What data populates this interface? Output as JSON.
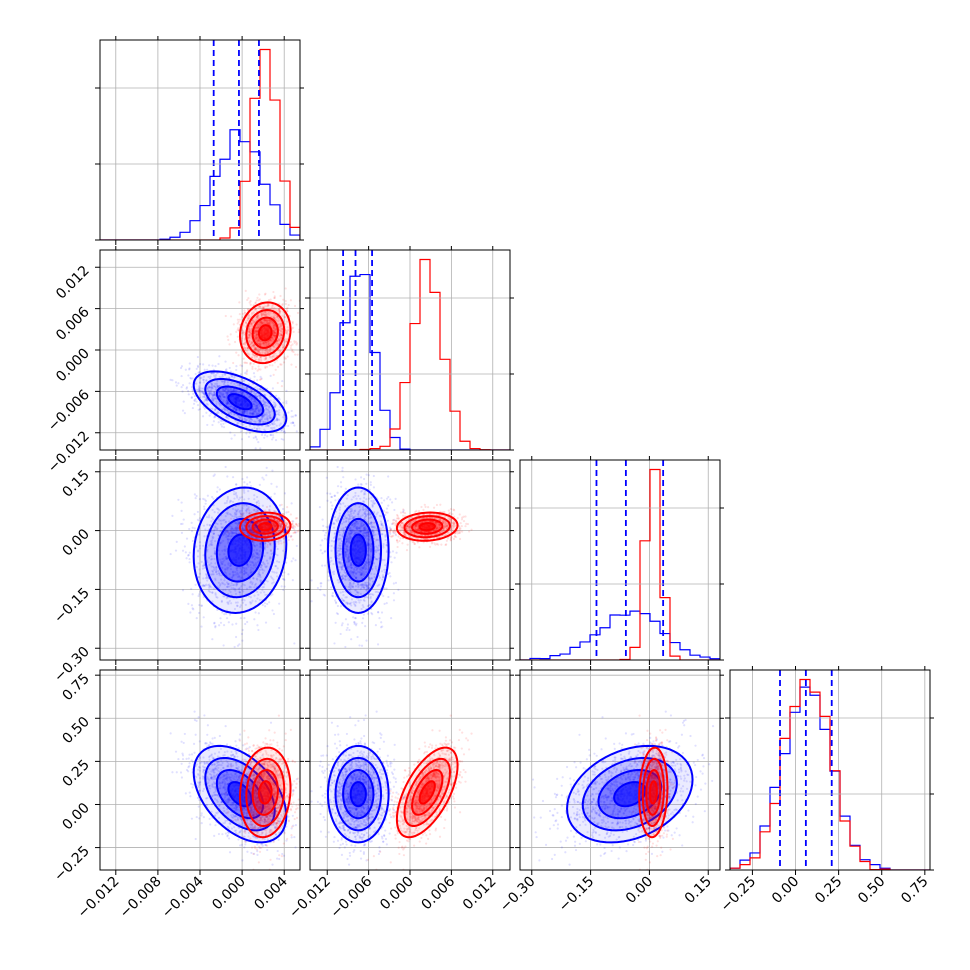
{
  "chart_data": {
    "type": "corner",
    "grid": true,
    "n_params": 4,
    "colors": {
      "blue": "#0000ff",
      "red": "#ff0000"
    },
    "series": [
      {
        "color": "#0000ff",
        "means": [
          -0.0002,
          -0.0075,
          -0.05,
          0.06
        ],
        "stds": [
          0.0022,
          0.0022,
          0.08,
          0.14
        ],
        "corr": [
          [
            1,
            -0.55,
            0.1,
            -0.45
          ],
          [
            -0.55,
            1,
            0.0,
            0.0
          ],
          [
            0.1,
            0.0,
            1,
            0.3
          ],
          [
            -0.45,
            0.0,
            0.3,
            1
          ]
        ],
        "quantiles": [
          [
            -0.0027,
            -0.0003,
            0.0016
          ],
          [
            -0.0097,
            -0.0079,
            -0.0055
          ],
          [
            -0.135,
            -0.06,
            0.035
          ],
          [
            -0.09,
            0.06,
            0.21
          ]
        ]
      },
      {
        "color": "#ff0000",
        "means": [
          0.0022,
          0.0025,
          0.01,
          0.07
        ],
        "stds": [
          0.0012,
          0.0022,
          0.018,
          0.13
        ],
        "corr": [
          [
            1,
            0.1,
            0.05,
            0.1
          ],
          [
            0.1,
            1,
            0.1,
            0.6
          ],
          [
            0.05,
            0.1,
            1,
            0.1
          ],
          [
            0.1,
            0.6,
            0.1,
            1
          ]
        ],
        "quantiles": null
      }
    ],
    "axes": [
      {
        "range": [
          -0.0135,
          0.0055
        ],
        "ticks": [
          -0.012,
          -0.008,
          -0.004,
          0.0,
          0.004
        ],
        "tick_labels": [
          "−0.012",
          "−0.008",
          "−0.004",
          "0.000",
          "0.004"
        ]
      },
      {
        "range": [
          -0.0145,
          0.0145
        ],
        "ticks": [
          -0.012,
          -0.006,
          0.0,
          0.006,
          0.012
        ],
        "tick_labels": [
          "−0.012",
          "−0.006",
          "0.000",
          "0.006",
          "0.012"
        ]
      },
      {
        "range": [
          -0.33,
          0.18
        ],
        "ticks": [
          -0.3,
          -0.15,
          0.0,
          0.15
        ],
        "tick_labels": [
          "−0.30",
          "−0.15",
          "0.00",
          "0.15"
        ]
      },
      {
        "range": [
          -0.38,
          0.78
        ],
        "ticks": [
          -0.25,
          0.0,
          0.25,
          0.5,
          0.75
        ],
        "tick_labels": [
          "−0.25",
          "0.00",
          "0.25",
          "0.50",
          "0.75"
        ]
      }
    ],
    "xlabels": [
      "",
      "",
      "",
      ""
    ],
    "ylabels": [
      "",
      "",
      "",
      ""
    ]
  }
}
